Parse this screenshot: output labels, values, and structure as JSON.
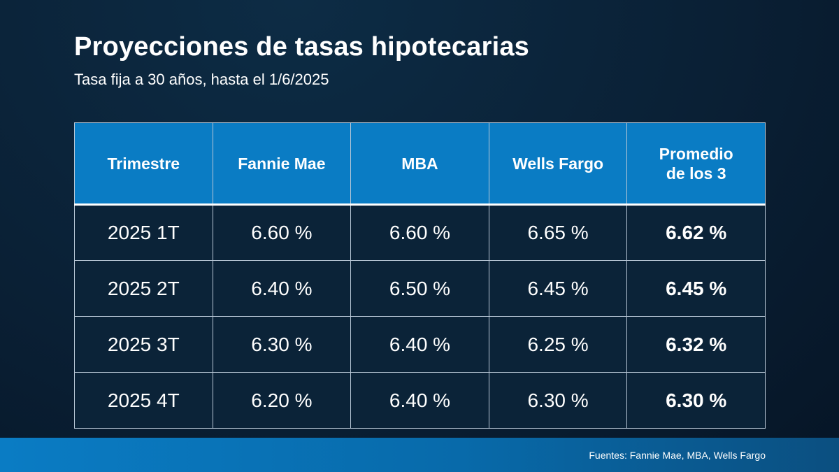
{
  "title": "Proyecciones de tasas hipotecarias",
  "subtitle": "Tasa fija a 30 años, hasta el 1/6/2025",
  "colors": {
    "background": "#0a2035",
    "header": "#0a7cc4",
    "cell": "#0b2338",
    "footer": "#0a7cc4"
  },
  "chart_data": {
    "type": "table",
    "columns": [
      "Trimestre",
      "Fannie Mae",
      "MBA",
      "Wells Fargo",
      "Promedio\nde los 3"
    ],
    "rows": [
      [
        "2025 1T",
        "6.60 %",
        "6.60 %",
        "6.65 %",
        "6.62 %"
      ],
      [
        "2025 2T",
        "6.40 %",
        "6.50 %",
        "6.45 %",
        "6.45 %"
      ],
      [
        "2025 3T",
        "6.30 %",
        "6.40 %",
        "6.25 %",
        "6.32 %"
      ],
      [
        "2025 4T",
        "6.20 %",
        "6.40 %",
        "6.30 %",
        "6.30 %"
      ]
    ]
  },
  "footer": {
    "sources": "Fuentes: Fannie Mae, MBA, Wells Fargo"
  }
}
